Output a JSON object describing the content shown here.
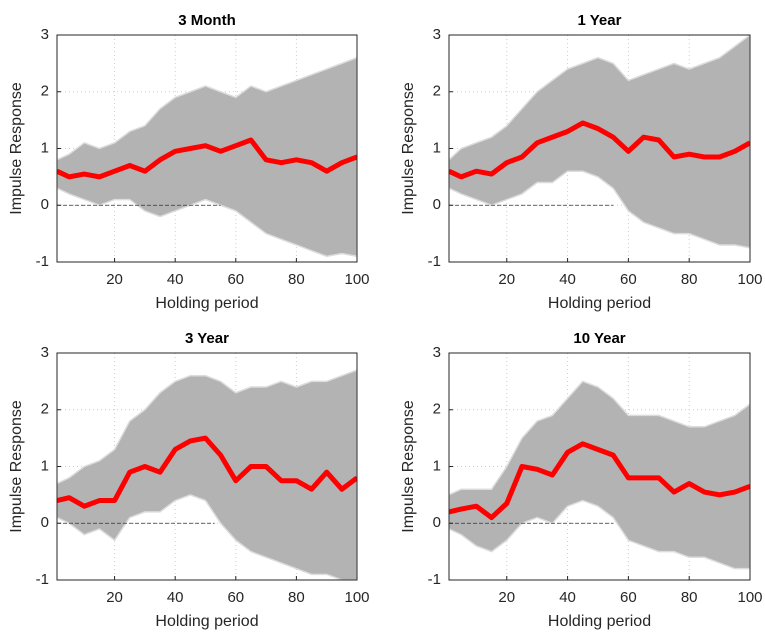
{
  "chart_data": [
    {
      "type": "line",
      "title": "3 Month",
      "xlabel": "Holding period",
      "ylabel": "Impulse Response",
      "x": [
        1,
        5,
        10,
        15,
        20,
        25,
        30,
        35,
        40,
        45,
        50,
        55,
        60,
        65,
        70,
        75,
        80,
        85,
        90,
        95,
        100
      ],
      "series": [
        {
          "color": "#ff0000",
          "values": [
            0.6,
            0.5,
            0.55,
            0.5,
            0.6,
            0.7,
            0.6,
            0.8,
            0.95,
            1.0,
            1.05,
            0.95,
            1.05,
            1.15,
            0.8,
            0.75,
            0.8,
            0.75,
            0.6,
            0.75,
            0.85
          ]
        }
      ],
      "band": {
        "color": "#b3b3b3",
        "upper": [
          0.8,
          0.9,
          1.1,
          1.0,
          1.1,
          1.3,
          1.4,
          1.7,
          1.9,
          2.0,
          2.1,
          2.0,
          1.9,
          2.1,
          2.0,
          2.1,
          2.2,
          2.3,
          2.4,
          2.5,
          2.6
        ],
        "lower": [
          0.3,
          0.2,
          0.1,
          0.0,
          0.1,
          0.1,
          -0.1,
          -0.2,
          -0.1,
          0.0,
          0.1,
          0.0,
          -0.1,
          -0.3,
          -0.5,
          -0.6,
          -0.7,
          -0.8,
          -0.9,
          -0.85,
          -0.9
        ]
      },
      "reference_line": {
        "value": 0,
        "x": [
          1,
          55
        ]
      },
      "xlim": [
        1,
        100
      ],
      "ylim": [
        -1,
        3
      ],
      "xticks": [
        20,
        40,
        60,
        80,
        100
      ],
      "yticks": [
        -1,
        0,
        1,
        2,
        3
      ],
      "grid": true
    },
    {
      "type": "line",
      "title": "1 Year",
      "xlabel": "Holding period",
      "ylabel": "Impulse Response",
      "x": [
        1,
        5,
        10,
        15,
        20,
        25,
        30,
        35,
        40,
        45,
        50,
        55,
        60,
        65,
        70,
        75,
        80,
        85,
        90,
        95,
        100
      ],
      "series": [
        {
          "color": "#ff0000",
          "values": [
            0.6,
            0.5,
            0.6,
            0.55,
            0.75,
            0.85,
            1.1,
            1.2,
            1.3,
            1.45,
            1.35,
            1.2,
            0.95,
            1.2,
            1.15,
            0.85,
            0.9,
            0.85,
            0.85,
            0.95,
            1.1
          ]
        }
      ],
      "band": {
        "color": "#b3b3b3",
        "upper": [
          0.8,
          1.0,
          1.1,
          1.2,
          1.4,
          1.7,
          2.0,
          2.2,
          2.4,
          2.5,
          2.6,
          2.5,
          2.2,
          2.3,
          2.4,
          2.5,
          2.4,
          2.5,
          2.6,
          2.8,
          3.0
        ],
        "lower": [
          0.3,
          0.2,
          0.1,
          0.0,
          0.1,
          0.2,
          0.4,
          0.4,
          0.6,
          0.6,
          0.5,
          0.3,
          -0.1,
          -0.3,
          -0.4,
          -0.5,
          -0.5,
          -0.6,
          -0.7,
          -0.7,
          -0.75
        ]
      },
      "reference_line": {
        "value": 0,
        "x": [
          1,
          55
        ]
      },
      "xlim": [
        1,
        100
      ],
      "ylim": [
        -1,
        3
      ],
      "xticks": [
        20,
        40,
        60,
        80,
        100
      ],
      "yticks": [
        -1,
        0,
        1,
        2,
        3
      ],
      "grid": true
    },
    {
      "type": "line",
      "title": "3 Year",
      "xlabel": "Holding period",
      "ylabel": "Impulse Response",
      "x": [
        1,
        5,
        10,
        15,
        20,
        25,
        30,
        35,
        40,
        45,
        50,
        55,
        60,
        65,
        70,
        75,
        80,
        85,
        90,
        95,
        100
      ],
      "series": [
        {
          "color": "#ff0000",
          "values": [
            0.4,
            0.45,
            0.3,
            0.4,
            0.4,
            0.9,
            1.0,
            0.9,
            1.3,
            1.45,
            1.5,
            1.2,
            0.75,
            1.0,
            1.0,
            0.75,
            0.75,
            0.6,
            0.9,
            0.6,
            0.8
          ]
        }
      ],
      "band": {
        "color": "#b3b3b3",
        "upper": [
          0.7,
          0.8,
          1.0,
          1.1,
          1.3,
          1.8,
          2.0,
          2.3,
          2.5,
          2.6,
          2.6,
          2.5,
          2.3,
          2.4,
          2.4,
          2.5,
          2.4,
          2.5,
          2.5,
          2.6,
          2.7
        ],
        "lower": [
          0.1,
          0.0,
          -0.2,
          -0.1,
          -0.3,
          0.1,
          0.2,
          0.2,
          0.4,
          0.5,
          0.4,
          0.0,
          -0.3,
          -0.5,
          -0.6,
          -0.7,
          -0.8,
          -0.9,
          -0.9,
          -1.0,
          -1.0
        ]
      },
      "reference_line": {
        "value": 0,
        "x": [
          1,
          53
        ]
      },
      "xlim": [
        1,
        100
      ],
      "ylim": [
        -1,
        3
      ],
      "xticks": [
        20,
        40,
        60,
        80,
        100
      ],
      "yticks": [
        -1,
        0,
        1,
        2,
        3
      ],
      "grid": true
    },
    {
      "type": "line",
      "title": "10 Year",
      "xlabel": "Holding period",
      "ylabel": "Impulse Response",
      "x": [
        1,
        5,
        10,
        15,
        20,
        25,
        30,
        35,
        40,
        45,
        50,
        55,
        60,
        65,
        70,
        75,
        80,
        85,
        90,
        95,
        100
      ],
      "series": [
        {
          "color": "#ff0000",
          "values": [
            0.2,
            0.25,
            0.3,
            0.1,
            0.35,
            1.0,
            0.95,
            0.85,
            1.25,
            1.4,
            1.3,
            1.2,
            0.8,
            0.8,
            0.8,
            0.55,
            0.7,
            0.55,
            0.5,
            0.55,
            0.65
          ]
        }
      ],
      "band": {
        "color": "#b3b3b3",
        "upper": [
          0.5,
          0.6,
          0.6,
          0.6,
          1.0,
          1.5,
          1.8,
          1.9,
          2.2,
          2.5,
          2.4,
          2.2,
          1.9,
          1.9,
          1.9,
          1.8,
          1.7,
          1.7,
          1.8,
          1.9,
          2.1
        ],
        "lower": [
          -0.1,
          -0.2,
          -0.4,
          -0.5,
          -0.3,
          0.0,
          0.1,
          0.0,
          0.3,
          0.4,
          0.3,
          0.1,
          -0.3,
          -0.4,
          -0.5,
          -0.5,
          -0.6,
          -0.6,
          -0.7,
          -0.8,
          -0.8
        ]
      },
      "reference_line": {
        "value": 0,
        "x": [
          1,
          55
        ]
      },
      "xlim": [
        1,
        100
      ],
      "ylim": [
        -1,
        3
      ],
      "xticks": [
        20,
        40,
        60,
        80,
        100
      ],
      "yticks": [
        -1,
        0,
        1,
        2,
        3
      ],
      "grid": true
    }
  ]
}
